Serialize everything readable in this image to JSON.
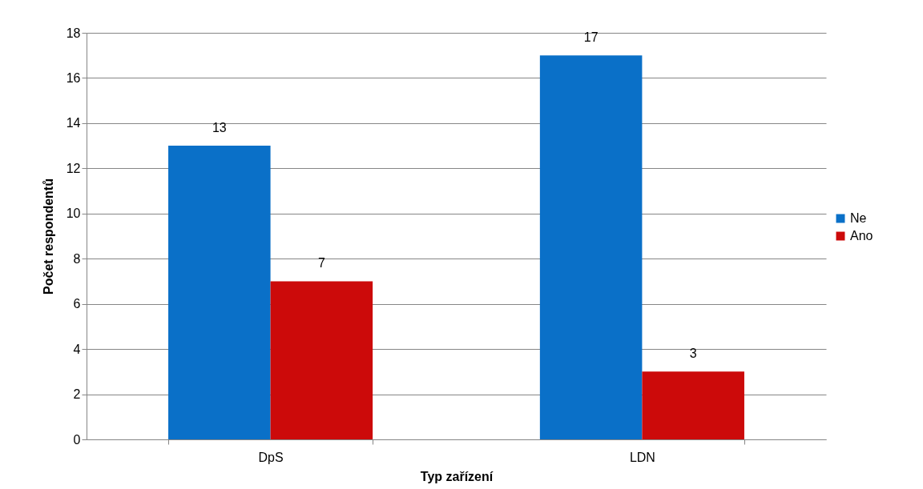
{
  "chart_data": {
    "type": "bar",
    "xlabel": "Typ zařízení",
    "ylabel": "Počet respondentů",
    "categories": [
      "DpS",
      "LDN"
    ],
    "series": [
      {
        "name": "Ne",
        "color": "#0a70c8",
        "values": [
          13,
          17
        ]
      },
      {
        "name": "Ano",
        "color": "#cc0a0a",
        "values": [
          7,
          3
        ]
      }
    ],
    "ylim": [
      0,
      18
    ],
    "yticks": [
      0,
      2,
      4,
      6,
      8,
      10,
      12,
      14,
      16,
      18
    ],
    "grid": "y",
    "legend": "right",
    "data_labels": true
  }
}
